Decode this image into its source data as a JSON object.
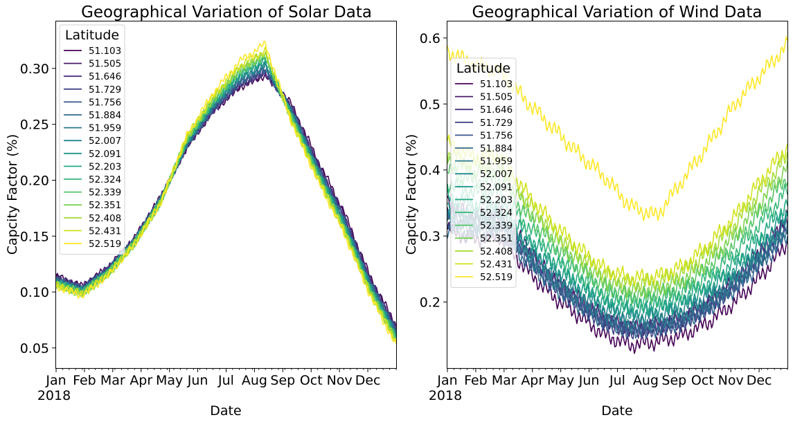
{
  "chart_data": [
    {
      "type": "line",
      "title": "Geographical Variation of Solar Data",
      "xlabel": "Date",
      "ylabel": "Capcity Factor (%)",
      "x_ticks": [
        "Jan",
        "Feb",
        "Mar",
        "Apr",
        "May",
        "Jun",
        "Jul",
        "Aug",
        "Sep",
        "Oct",
        "Nov",
        "Dec"
      ],
      "x_year_label": "2018",
      "y_ticks": [
        "0.05",
        "0.10",
        "0.15",
        "0.20",
        "0.25",
        "0.30"
      ],
      "x_range": [
        0,
        12
      ],
      "ylim": [
        0.032,
        0.342
      ],
      "grid": false,
      "legend": {
        "title": "Latitude",
        "position": "upper-left"
      },
      "series": [
        {
          "name": "51.103",
          "color": "#440154",
          "values": [
            0.114,
            0.105,
            0.122,
            0.148,
            0.185,
            0.23,
            0.262,
            0.283,
            0.294,
            0.268,
            0.218,
            0.172,
            0.114,
            0.07
          ]
        },
        {
          "name": "51.505",
          "color": "#481a6c",
          "values": [
            0.113,
            0.104,
            0.121,
            0.147,
            0.184,
            0.23,
            0.262,
            0.284,
            0.295,
            0.266,
            0.215,
            0.169,
            0.112,
            0.068
          ]
        },
        {
          "name": "51.646",
          "color": "#472f7d",
          "values": [
            0.112,
            0.104,
            0.121,
            0.147,
            0.184,
            0.231,
            0.263,
            0.285,
            0.296,
            0.265,
            0.214,
            0.168,
            0.111,
            0.067
          ]
        },
        {
          "name": "51.729",
          "color": "#414487",
          "values": [
            0.112,
            0.103,
            0.12,
            0.146,
            0.183,
            0.231,
            0.264,
            0.286,
            0.298,
            0.264,
            0.213,
            0.167,
            0.11,
            0.066
          ]
        },
        {
          "name": "51.756",
          "color": "#39568c",
          "values": [
            0.111,
            0.103,
            0.12,
            0.146,
            0.183,
            0.232,
            0.264,
            0.287,
            0.299,
            0.263,
            0.212,
            0.166,
            0.109,
            0.065
          ]
        },
        {
          "name": "51.884",
          "color": "#31688e",
          "values": [
            0.11,
            0.102,
            0.119,
            0.146,
            0.183,
            0.232,
            0.265,
            0.288,
            0.3,
            0.262,
            0.211,
            0.164,
            0.108,
            0.064
          ]
        },
        {
          "name": "51.959",
          "color": "#2a788e",
          "values": [
            0.11,
            0.102,
            0.119,
            0.145,
            0.182,
            0.233,
            0.266,
            0.29,
            0.302,
            0.261,
            0.21,
            0.163,
            0.107,
            0.063
          ]
        },
        {
          "name": "52.007",
          "color": "#23888e",
          "values": [
            0.109,
            0.101,
            0.118,
            0.145,
            0.182,
            0.234,
            0.267,
            0.291,
            0.304,
            0.26,
            0.209,
            0.162,
            0.106,
            0.062
          ]
        },
        {
          "name": "52.091",
          "color": "#1f988b",
          "values": [
            0.109,
            0.101,
            0.118,
            0.145,
            0.182,
            0.234,
            0.268,
            0.293,
            0.306,
            0.259,
            0.208,
            0.161,
            0.105,
            0.061
          ]
        },
        {
          "name": "52.203",
          "color": "#22a884",
          "values": [
            0.108,
            0.1,
            0.118,
            0.144,
            0.181,
            0.235,
            0.269,
            0.294,
            0.308,
            0.258,
            0.207,
            0.16,
            0.104,
            0.06
          ]
        },
        {
          "name": "52.324",
          "color": "#35b779",
          "values": [
            0.108,
            0.1,
            0.117,
            0.144,
            0.181,
            0.236,
            0.27,
            0.296,
            0.31,
            0.257,
            0.206,
            0.159,
            0.103,
            0.059
          ]
        },
        {
          "name": "52.339",
          "color": "#54c568",
          "values": [
            0.107,
            0.099,
            0.117,
            0.144,
            0.181,
            0.236,
            0.271,
            0.297,
            0.311,
            0.256,
            0.205,
            0.158,
            0.102,
            0.058
          ]
        },
        {
          "name": "52.351",
          "color": "#7ad151",
          "values": [
            0.107,
            0.099,
            0.117,
            0.144,
            0.18,
            0.237,
            0.272,
            0.298,
            0.312,
            0.255,
            0.204,
            0.157,
            0.101,
            0.057
          ]
        },
        {
          "name": "52.408",
          "color": "#a5db36",
          "values": [
            0.106,
            0.098,
            0.116,
            0.143,
            0.18,
            0.238,
            0.273,
            0.3,
            0.314,
            0.254,
            0.203,
            0.156,
            0.1,
            0.056
          ]
        },
        {
          "name": "52.431",
          "color": "#d2e21b",
          "values": [
            0.106,
            0.098,
            0.116,
            0.143,
            0.18,
            0.239,
            0.275,
            0.302,
            0.316,
            0.253,
            0.202,
            0.155,
            0.099,
            0.055
          ]
        },
        {
          "name": "52.519",
          "color": "#fde725",
          "values": [
            0.105,
            0.097,
            0.115,
            0.143,
            0.18,
            0.24,
            0.278,
            0.306,
            0.322,
            0.252,
            0.2,
            0.153,
            0.097,
            0.052
          ]
        }
      ]
    },
    {
      "type": "line",
      "title": "Geographical Variation of Wind Data",
      "xlabel": "Date",
      "ylabel": "Capcity Factor (%)",
      "x_ticks": [
        "Jan",
        "Feb",
        "Mar",
        "Apr",
        "May",
        "Jun",
        "Jul",
        "Aug",
        "Sep",
        "Oct",
        "Nov",
        "Dec"
      ],
      "x_year_label": "2018",
      "y_ticks": [
        "0.2",
        "0.3",
        "0.4",
        "0.5",
        "0.6"
      ],
      "x_range": [
        0,
        12
      ],
      "ylim": [
        0.1,
        0.625
      ],
      "grid": false,
      "legend": {
        "title": "Latitude",
        "position": "left"
      },
      "series": [
        {
          "name": "51.103",
          "color": "#440154",
          "values": [
            0.31,
            0.295,
            0.3,
            0.25,
            0.21,
            0.18,
            0.15,
            0.135,
            0.14,
            0.15,
            0.17,
            0.2,
            0.24,
            0.29
          ]
        },
        {
          "name": "51.505",
          "color": "#481a6c",
          "values": [
            0.35,
            0.33,
            0.335,
            0.285,
            0.24,
            0.205,
            0.175,
            0.16,
            0.165,
            0.175,
            0.2,
            0.235,
            0.28,
            0.33
          ]
        },
        {
          "name": "51.646",
          "color": "#472f7d",
          "values": [
            0.34,
            0.325,
            0.328,
            0.28,
            0.235,
            0.202,
            0.172,
            0.158,
            0.162,
            0.172,
            0.196,
            0.23,
            0.275,
            0.322
          ]
        },
        {
          "name": "51.729",
          "color": "#414487",
          "values": [
            0.33,
            0.318,
            0.32,
            0.272,
            0.23,
            0.198,
            0.17,
            0.156,
            0.16,
            0.17,
            0.193,
            0.226,
            0.268,
            0.315
          ]
        },
        {
          "name": "51.756",
          "color": "#39568c",
          "values": [
            0.32,
            0.31,
            0.312,
            0.266,
            0.226,
            0.195,
            0.168,
            0.155,
            0.158,
            0.168,
            0.19,
            0.222,
            0.262,
            0.308
          ]
        },
        {
          "name": "51.884",
          "color": "#31688e",
          "values": [
            0.31,
            0.302,
            0.305,
            0.262,
            0.225,
            0.195,
            0.17,
            0.158,
            0.16,
            0.17,
            0.19,
            0.22,
            0.258,
            0.3
          ]
        },
        {
          "name": "51.959",
          "color": "#2a788e",
          "values": [
            0.325,
            0.315,
            0.318,
            0.272,
            0.235,
            0.205,
            0.18,
            0.168,
            0.17,
            0.18,
            0.2,
            0.23,
            0.268,
            0.312
          ]
        },
        {
          "name": "52.007",
          "color": "#23888e",
          "values": [
            0.335,
            0.325,
            0.328,
            0.282,
            0.245,
            0.215,
            0.19,
            0.178,
            0.18,
            0.19,
            0.21,
            0.24,
            0.278,
            0.322
          ]
        },
        {
          "name": "52.091",
          "color": "#1f988b",
          "values": [
            0.345,
            0.335,
            0.338,
            0.292,
            0.255,
            0.224,
            0.198,
            0.186,
            0.188,
            0.198,
            0.22,
            0.25,
            0.29,
            0.335
          ]
        },
        {
          "name": "52.203",
          "color": "#22a884",
          "values": [
            0.36,
            0.348,
            0.35,
            0.303,
            0.265,
            0.232,
            0.205,
            0.193,
            0.195,
            0.206,
            0.228,
            0.26,
            0.302,
            0.35
          ]
        },
        {
          "name": "52.324",
          "color": "#35b779",
          "values": [
            0.38,
            0.366,
            0.368,
            0.318,
            0.278,
            0.243,
            0.215,
            0.202,
            0.204,
            0.216,
            0.24,
            0.275,
            0.32,
            0.37
          ]
        },
        {
          "name": "52.339",
          "color": "#54c568",
          "values": [
            0.4,
            0.384,
            0.386,
            0.333,
            0.29,
            0.253,
            0.224,
            0.21,
            0.212,
            0.225,
            0.252,
            0.29,
            0.338,
            0.39
          ]
        },
        {
          "name": "52.351",
          "color": "#7ad151",
          "values": [
            0.415,
            0.398,
            0.4,
            0.345,
            0.3,
            0.262,
            0.232,
            0.217,
            0.219,
            0.233,
            0.262,
            0.302,
            0.352,
            0.405
          ]
        },
        {
          "name": "52.408",
          "color": "#a5db36",
          "values": [
            0.425,
            0.408,
            0.41,
            0.355,
            0.31,
            0.272,
            0.242,
            0.228,
            0.23,
            0.245,
            0.276,
            0.318,
            0.37,
            0.42
          ]
        },
        {
          "name": "52.431",
          "color": "#d2e21b",
          "values": [
            0.44,
            0.42,
            0.422,
            0.366,
            0.32,
            0.282,
            0.25,
            0.236,
            0.238,
            0.254,
            0.287,
            0.33,
            0.385,
            0.435
          ]
        },
        {
          "name": "52.519",
          "color": "#fde725",
          "values": [
            0.58,
            0.56,
            0.55,
            0.505,
            0.465,
            0.425,
            0.39,
            0.345,
            0.33,
            0.385,
            0.44,
            0.5,
            0.545,
            0.59
          ]
        }
      ]
    }
  ]
}
